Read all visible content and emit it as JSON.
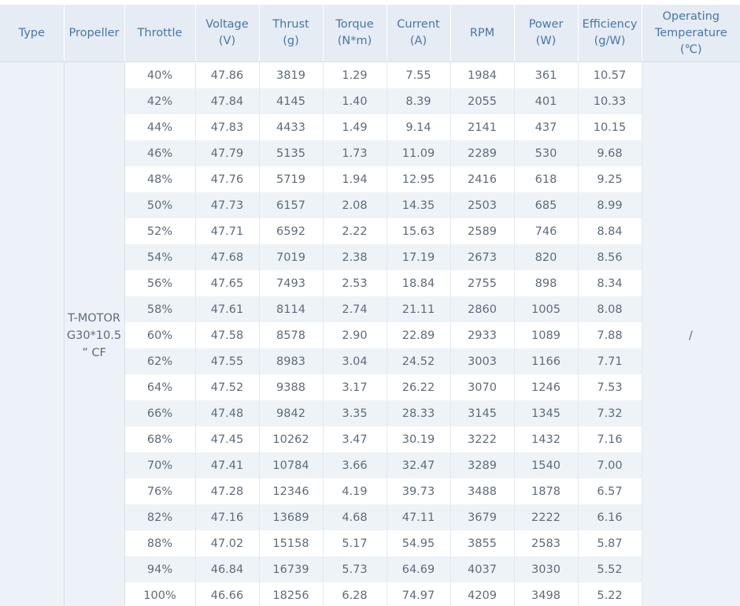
{
  "headers": [
    {
      "line1": "Type",
      "line2": ""
    },
    {
      "line1": "Propeller",
      "line2": ""
    },
    {
      "line1": "Throttle",
      "line2": ""
    },
    {
      "line1": "Voltage",
      "line2": "(V)"
    },
    {
      "line1": "Thrust",
      "line2": "(g)"
    },
    {
      "line1": "Torque",
      "line2": "(N*m)"
    },
    {
      "line1": "Current",
      "line2": "(A)"
    },
    {
      "line1": "RPM",
      "line2": ""
    },
    {
      "line1": "Power",
      "line2": "(W)"
    },
    {
      "line1": "Efficiency",
      "line2": "(g/W)"
    },
    {
      "line1": "Operating",
      "line2": "Temperature",
      "line3": "(℃)"
    }
  ],
  "type_value": "",
  "propeller": {
    "line1": "T-MOTOR",
    "line2": "G30*10.5",
    "line3": "” CF"
  },
  "operating_temperature": "/",
  "rows": [
    [
      "40%",
      "47.86",
      "3819",
      "1.29",
      "7.55",
      "1984",
      "361",
      "10.57"
    ],
    [
      "42%",
      "47.84",
      "4145",
      "1.40",
      "8.39",
      "2055",
      "401",
      "10.33"
    ],
    [
      "44%",
      "47.83",
      "4433",
      "1.49",
      "9.14",
      "2141",
      "437",
      "10.15"
    ],
    [
      "46%",
      "47.79",
      "5135",
      "1.73",
      "11.09",
      "2289",
      "530",
      "9.68"
    ],
    [
      "48%",
      "47.76",
      "5719",
      "1.94",
      "12.95",
      "2416",
      "618",
      "9.25"
    ],
    [
      "50%",
      "47.73",
      "6157",
      "2.08",
      "14.35",
      "2503",
      "685",
      "8.99"
    ],
    [
      "52%",
      "47.71",
      "6592",
      "2.22",
      "15.63",
      "2589",
      "746",
      "8.84"
    ],
    [
      "54%",
      "47.68",
      "7019",
      "2.38",
      "17.19",
      "2673",
      "820",
      "8.56"
    ],
    [
      "56%",
      "47.65",
      "7493",
      "2.53",
      "18.84",
      "2755",
      "898",
      "8.34"
    ],
    [
      "58%",
      "47.61",
      "8114",
      "2.74",
      "21.11",
      "2860",
      "1005",
      "8.08"
    ],
    [
      "60%",
      "47.58",
      "8578",
      "2.90",
      "22.89",
      "2933",
      "1089",
      "7.88"
    ],
    [
      "62%",
      "47.55",
      "8983",
      "3.04",
      "24.52",
      "3003",
      "1166",
      "7.71"
    ],
    [
      "64%",
      "47.52",
      "9388",
      "3.17",
      "26.22",
      "3070",
      "1246",
      "7.53"
    ],
    [
      "66%",
      "47.48",
      "9842",
      "3.35",
      "28.33",
      "3145",
      "1345",
      "7.32"
    ],
    [
      "68%",
      "47.45",
      "10262",
      "3.47",
      "30.19",
      "3222",
      "1432",
      "7.16"
    ],
    [
      "70%",
      "47.41",
      "10784",
      "3.66",
      "32.47",
      "3289",
      "1540",
      "7.00"
    ],
    [
      "76%",
      "47.28",
      "12346",
      "4.19",
      "39.73",
      "3488",
      "1878",
      "6.57"
    ],
    [
      "82%",
      "47.16",
      "13689",
      "4.68",
      "47.11",
      "3679",
      "2222",
      "6.16"
    ],
    [
      "88%",
      "47.02",
      "15158",
      "5.17",
      "54.95",
      "3855",
      "2583",
      "5.87"
    ],
    [
      "94%",
      "46.84",
      "16739",
      "5.73",
      "64.69",
      "4037",
      "3030",
      "5.52"
    ],
    [
      "100%",
      "46.66",
      "18256",
      "6.28",
      "74.97",
      "4209",
      "3498",
      "5.22"
    ]
  ]
}
